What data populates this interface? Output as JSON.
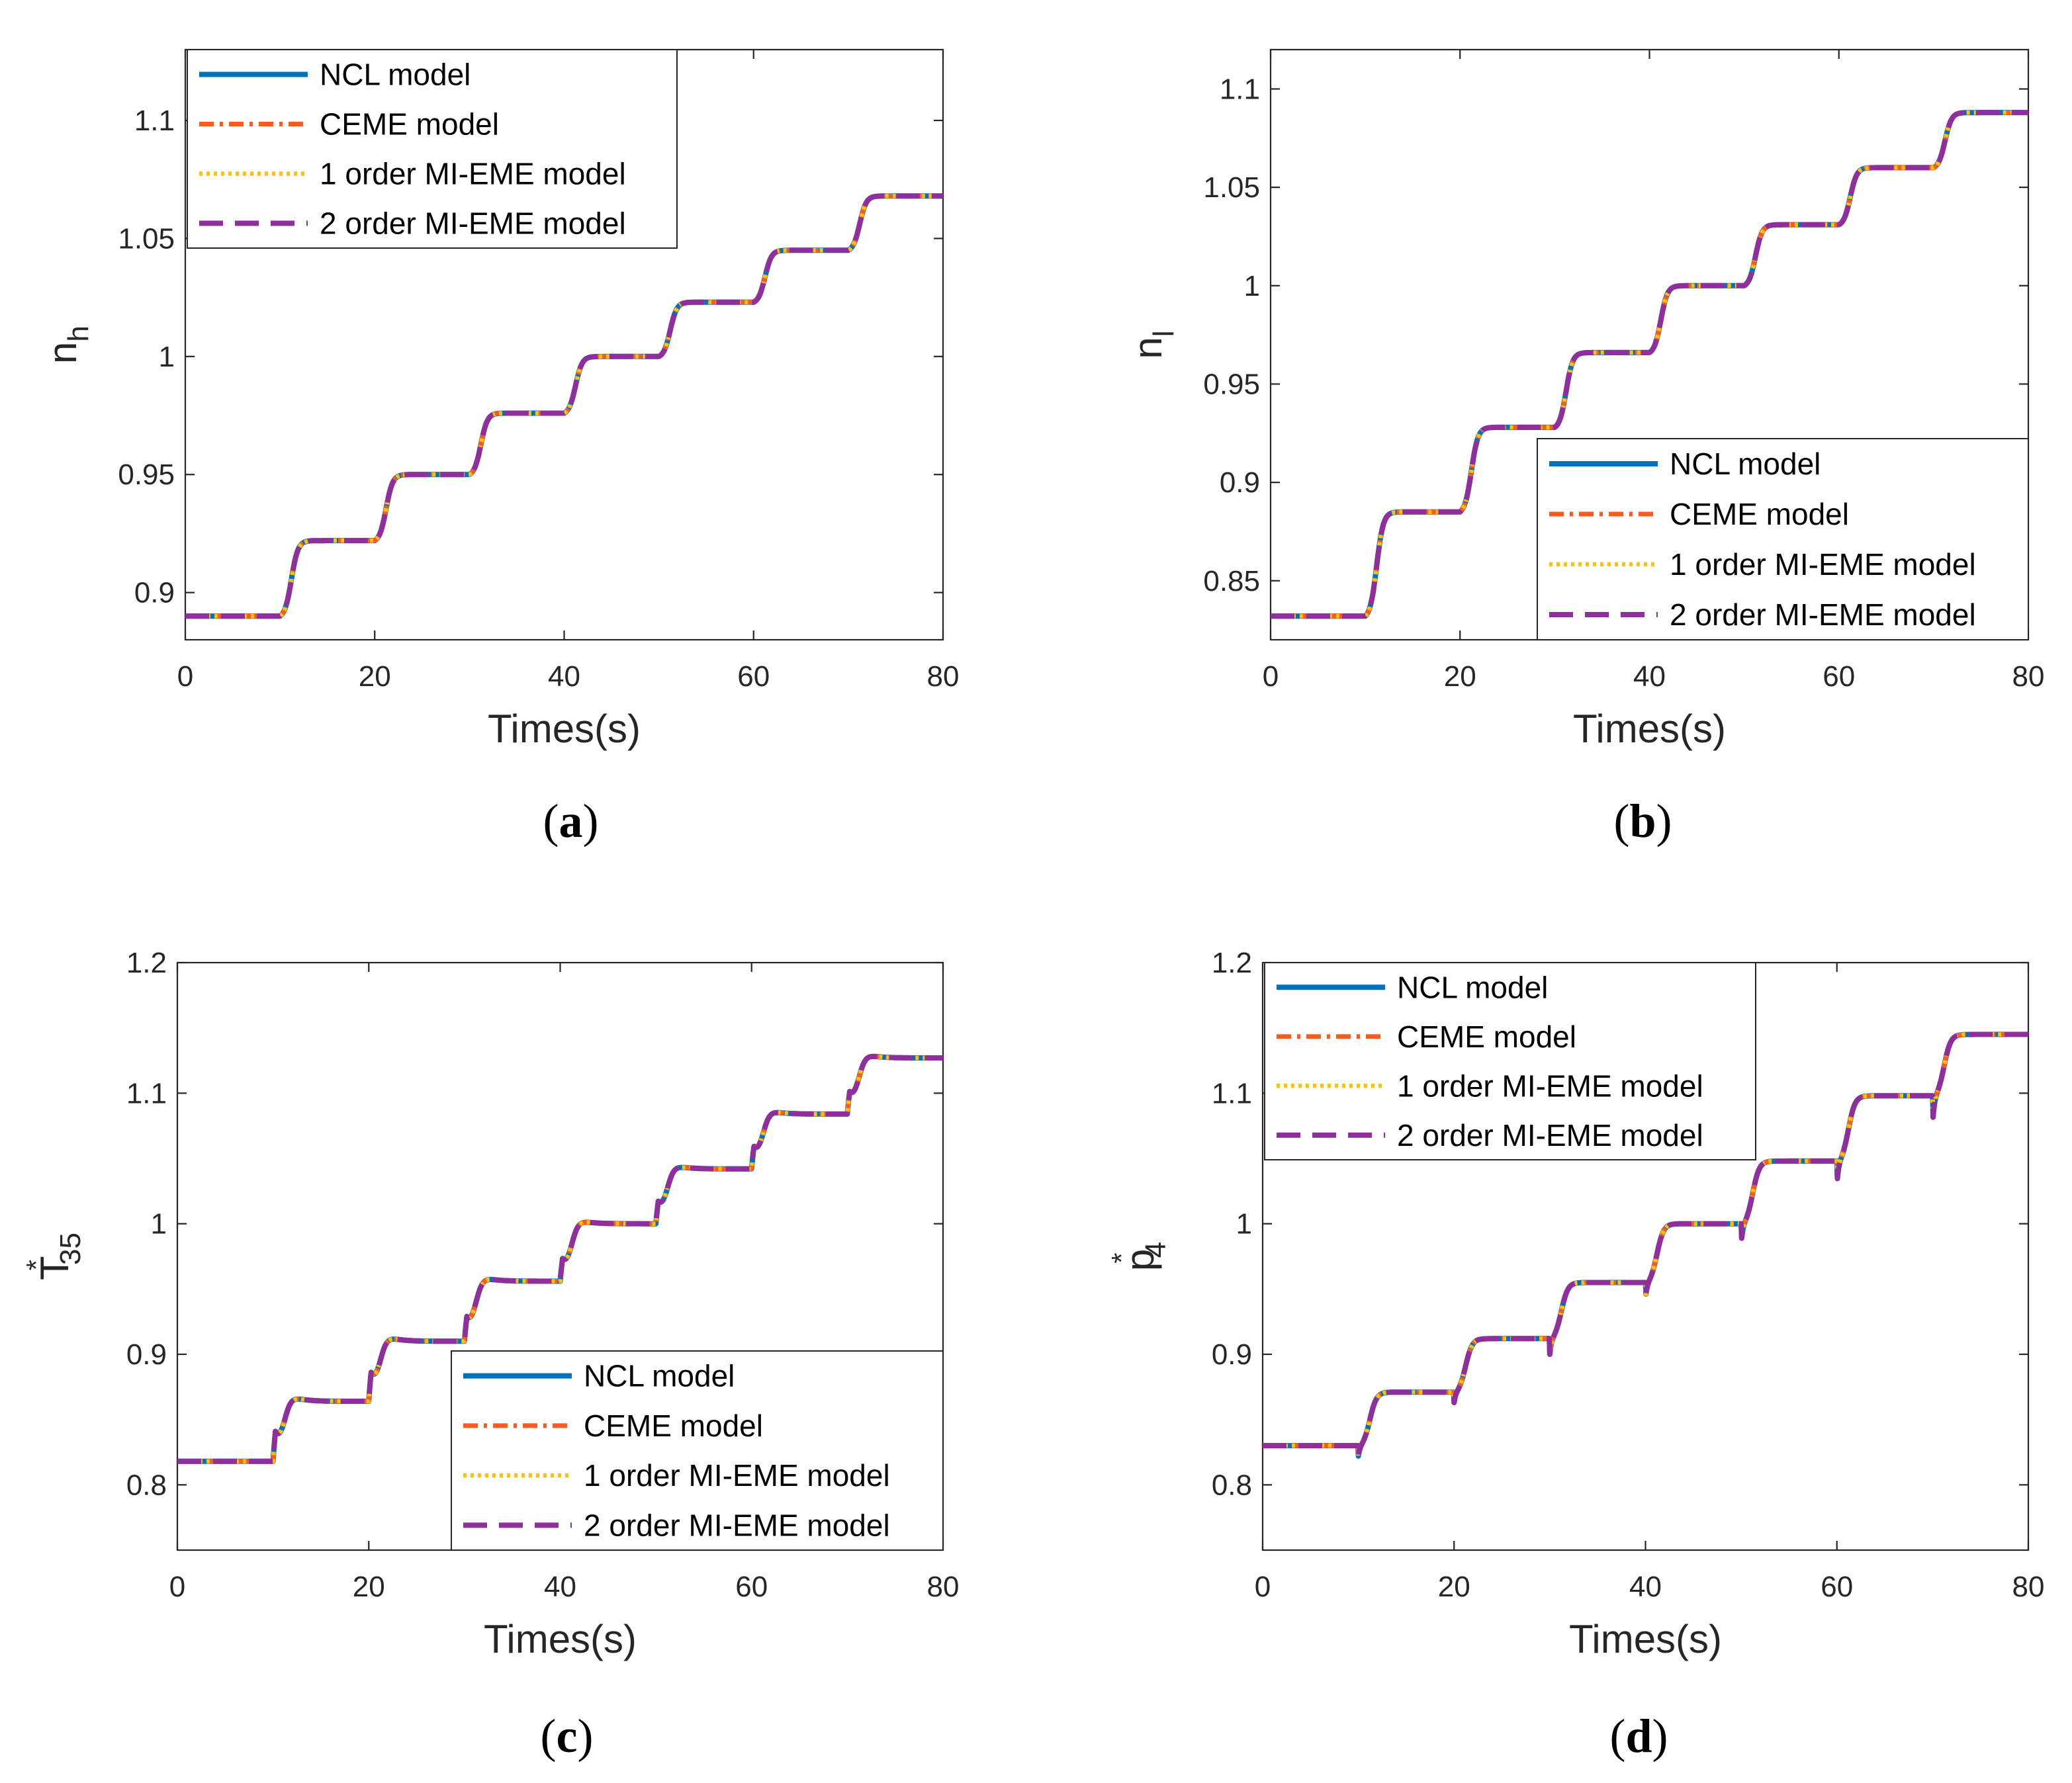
{
  "colors": {
    "ncl": "#0072BD",
    "ceme": "#FF5A1E",
    "mi1": "#FFC107",
    "mi2": "#8E2F9C",
    "axis": "#262626"
  },
  "chart_data": [
    {
      "type": "line",
      "panel": "(a)",
      "caption_letter": "a",
      "xlabel": "Times(s)",
      "ylabel_main": "n",
      "ylabel_sub": "h",
      "ylabel_sup": "",
      "xlim": [
        0,
        80
      ],
      "ylim": [
        0.88,
        1.13
      ],
      "xticks": [
        0,
        20,
        40,
        60,
        80
      ],
      "yticks": [
        0.9,
        0.95,
        1,
        1.05,
        1.1
      ],
      "ytick_labels": [
        "0.9",
        "0.95",
        "1",
        "1.05",
        "1.1"
      ],
      "legend_position": "top-left",
      "step_times": [
        10,
        20,
        30,
        40,
        50,
        60,
        70
      ],
      "levels": [
        0.89,
        0.922,
        0.95,
        0.976,
        1.0,
        1.023,
        1.045,
        1.068
      ],
      "overshoot": [
        0,
        0,
        0,
        0,
        0,
        0,
        0
      ],
      "dip": [
        0,
        0,
        0,
        0,
        0,
        0,
        0
      ],
      "series": [
        {
          "name": "NCL model"
        },
        {
          "name": "CEME model"
        },
        {
          "name": "1 order MI-EME model"
        },
        {
          "name": "2 order MI-EME model"
        }
      ]
    },
    {
      "type": "line",
      "panel": "(b)",
      "caption_letter": "b",
      "xlabel": "Times(s)",
      "ylabel_main": "n",
      "ylabel_sub": "l",
      "ylabel_sup": "",
      "xlim": [
        0,
        80
      ],
      "ylim": [
        0.82,
        1.12
      ],
      "xticks": [
        0,
        20,
        40,
        60,
        80
      ],
      "yticks": [
        0.85,
        0.9,
        0.95,
        1,
        1.05,
        1.1
      ],
      "ytick_labels": [
        "0.85",
        "0.9",
        "0.95",
        "1",
        "1.05",
        "1.1"
      ],
      "legend_position": "bottom-right",
      "step_times": [
        10,
        20,
        30,
        40,
        50,
        60,
        70
      ],
      "levels": [
        0.832,
        0.885,
        0.928,
        0.966,
        1.0,
        1.031,
        1.06,
        1.088
      ],
      "overshoot": [
        0,
        0,
        0,
        0,
        0,
        0,
        0
      ],
      "dip": [
        0,
        0,
        0,
        0,
        0,
        0,
        0
      ],
      "series": [
        {
          "name": "NCL model"
        },
        {
          "name": "CEME model"
        },
        {
          "name": "1 order MI-EME model"
        },
        {
          "name": "2 order MI-EME model"
        }
      ]
    },
    {
      "type": "line",
      "panel": "(c)",
      "caption_letter": "c",
      "xlabel": "Times(s)",
      "ylabel_main": "T",
      "ylabel_sub": "35",
      "ylabel_sup": "*",
      "xlim": [
        0,
        80
      ],
      "ylim": [
        0.75,
        1.2
      ],
      "xticks": [
        0,
        20,
        40,
        60,
        80
      ],
      "yticks": [
        0.8,
        0.9,
        1,
        1.1,
        1.2
      ],
      "ytick_labels": [
        "0.8",
        "0.9",
        "1",
        "1.1",
        "1.2"
      ],
      "legend_position": "bottom-right",
      "step_times": [
        10,
        20,
        30,
        40,
        50,
        60,
        70
      ],
      "levels": [
        0.818,
        0.864,
        0.91,
        0.956,
        1.0,
        1.042,
        1.084,
        1.127
      ],
      "overshoot": [
        0.027,
        0.026,
        0.022,
        0.02,
        0.02,
        0.02,
        0.02
      ],
      "dip": [
        0,
        0,
        0,
        0,
        0,
        0,
        0
      ],
      "series": [
        {
          "name": "NCL model"
        },
        {
          "name": "CEME model"
        },
        {
          "name": "1 order MI-EME model"
        },
        {
          "name": "2 order MI-EME model"
        }
      ]
    },
    {
      "type": "line",
      "panel": "(d)",
      "caption_letter": "d",
      "xlabel": "Times(s)",
      "ylabel_main": "p",
      "ylabel_sub": "4",
      "ylabel_sup": "*",
      "xlim": [
        0,
        80
      ],
      "ylim": [
        0.75,
        1.2
      ],
      "xticks": [
        0,
        20,
        40,
        60,
        80
      ],
      "yticks": [
        0.8,
        0.9,
        1,
        1.1,
        1.2
      ],
      "ytick_labels": [
        "0.8",
        "0.9",
        "1",
        "1.1",
        "1.2"
      ],
      "legend_position": "top-left",
      "step_times": [
        10,
        20,
        30,
        40,
        50,
        60,
        70
      ],
      "levels": [
        0.83,
        0.871,
        0.912,
        0.955,
        1.0,
        1.048,
        1.098,
        1.145
      ],
      "overshoot": [
        0,
        0,
        0,
        0,
        0,
        0,
        0
      ],
      "dip": [
        0.008,
        0.008,
        0.012,
        0.012,
        0.015,
        0.018,
        0.022
      ],
      "series": [
        {
          "name": "NCL model"
        },
        {
          "name": "CEME model"
        },
        {
          "name": "1 order MI-EME model"
        },
        {
          "name": "2 order MI-EME model"
        }
      ]
    }
  ]
}
